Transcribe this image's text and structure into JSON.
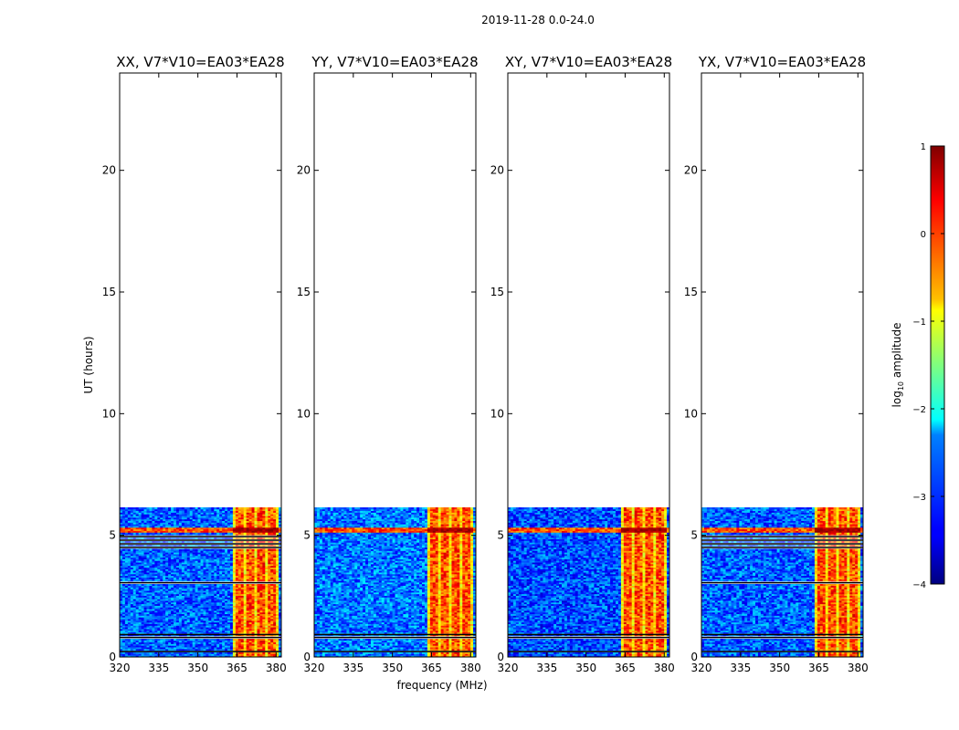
{
  "figure": {
    "suptitle": "2019-11-28 0.0-24.0",
    "xlabel": "frequency (MHz)",
    "ylabel": "UT (hours)",
    "colorbar_label_pre": "log",
    "colorbar_label_sub": "10",
    "colorbar_label_post": " amplitude"
  },
  "chart_data": {
    "type": "heatmap",
    "xlim": [
      320,
      382
    ],
    "ylim": [
      0,
      24
    ],
    "x_ticks": [
      320,
      335,
      350,
      365,
      380
    ],
    "y_ticks": [
      0,
      5,
      10,
      15,
      20
    ],
    "data_extent_hours": [
      0,
      6.15
    ],
    "colorbar": {
      "range": [
        -4,
        1
      ],
      "ticks": [
        1,
        0,
        -1,
        -2,
        -3,
        -4
      ],
      "tick_labels": [
        "1",
        "0",
        "−1",
        "−2",
        "−3",
        "−4"
      ],
      "colormap": "jet"
    },
    "panels": [
      {
        "title": "XX, V7*V10=EA03*EA28",
        "band_mhz": [
          363.5,
          380.5
        ],
        "background_level": -2.9,
        "bright_band_hours": [
          5.15,
          5.35
        ],
        "flagged_hours": [
          [
            4.45,
            4.55
          ],
          [
            4.6,
            4.7
          ],
          [
            4.75,
            4.85
          ],
          [
            4.9,
            5.0
          ],
          [
            3.0,
            3.1
          ],
          [
            0.75,
            0.85
          ],
          [
            0.9,
            0.95
          ],
          [
            0.2,
            0.25
          ]
        ]
      },
      {
        "title": "YY, V7*V10=EA03*EA28",
        "band_mhz": [
          363.5,
          380.5
        ],
        "background_level": -2.8,
        "bright_band_hours": [
          5.1,
          5.35
        ],
        "flagged_hours": [
          [
            0.75,
            0.85
          ],
          [
            0.9,
            0.95
          ],
          [
            0.2,
            0.25
          ]
        ]
      },
      {
        "title": "XY, V7*V10=EA03*EA28",
        "band_mhz": [
          363.5,
          380.5
        ],
        "background_level": -3.0,
        "bright_band_hours": [
          5.15,
          5.35
        ],
        "flagged_hours": [
          [
            0.75,
            0.85
          ],
          [
            0.9,
            0.95
          ],
          [
            0.2,
            0.25
          ]
        ]
      },
      {
        "title": "YX, V7*V10=EA03*EA28",
        "band_mhz": [
          363.5,
          380.5
        ],
        "background_level": -2.9,
        "bright_band_hours": [
          5.15,
          5.35
        ],
        "flagged_hours": [
          [
            4.45,
            4.55
          ],
          [
            4.6,
            4.7
          ],
          [
            4.75,
            4.85
          ],
          [
            4.9,
            5.0
          ],
          [
            3.0,
            3.1
          ],
          [
            0.75,
            0.85
          ],
          [
            0.9,
            0.95
          ],
          [
            0.2,
            0.25
          ]
        ]
      }
    ]
  }
}
